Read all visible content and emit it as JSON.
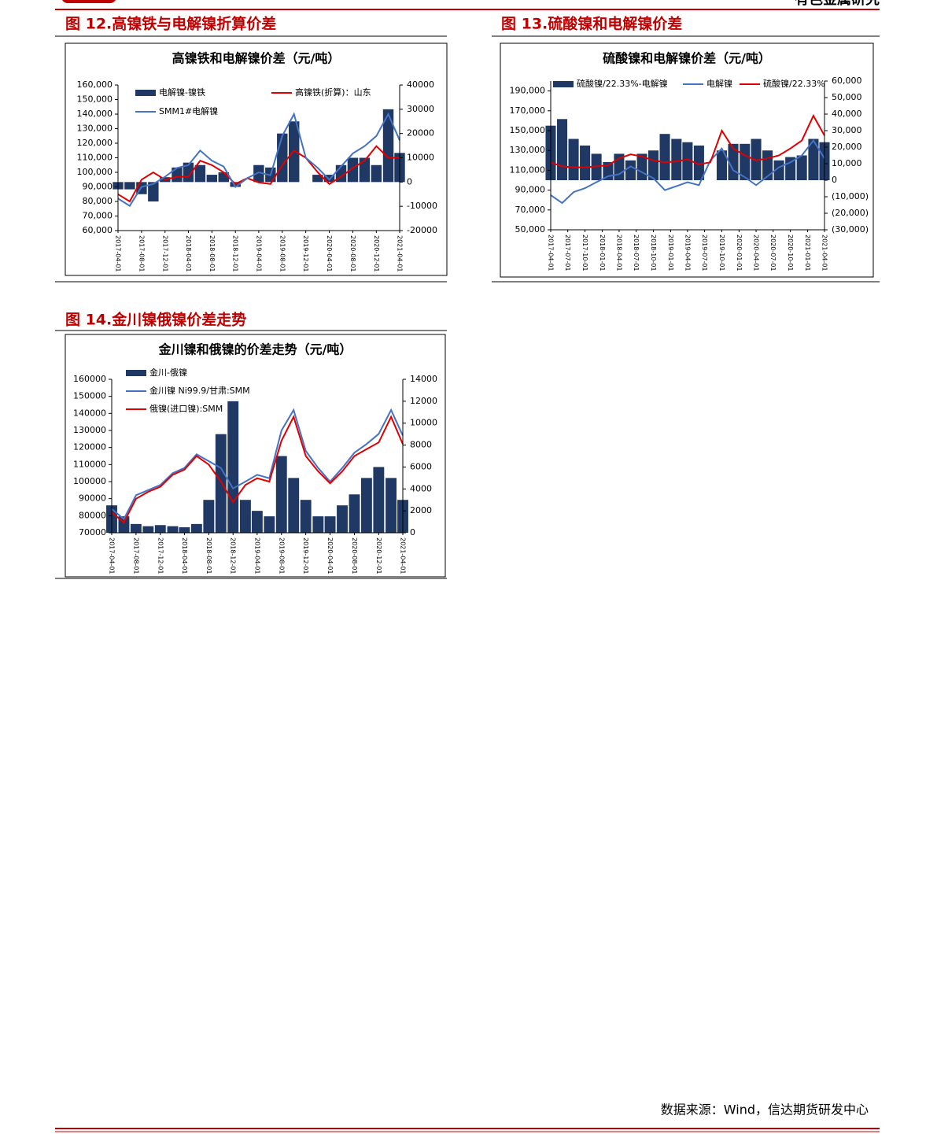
{
  "header_text": "有色金属研究",
  "source": "数据来源：Wind，信达期货研发中心",
  "chart_data": [
    {
      "type": "bar-line",
      "figure_title": "图 12.高镍铁与电解镍折算价差",
      "title": "高镍铁和电解镍价差（元/吨）",
      "x": [
        "2017-04-01",
        "2017-06-01",
        "2017-08-01",
        "2017-10-01",
        "2017-12-01",
        "2018-02-01",
        "2018-04-01",
        "2018-06-01",
        "2018-08-01",
        "2018-10-01",
        "2018-12-01",
        "2019-02-01",
        "2019-04-01",
        "2019-06-01",
        "2019-08-01",
        "2019-10-01",
        "2019-12-01",
        "2020-02-01",
        "2020-04-01",
        "2020-06-01",
        "2020-08-01",
        "2020-10-01",
        "2020-12-01",
        "2021-02-01",
        "2021-04-01"
      ],
      "xticks": [
        "2017-04-01",
        "2017-08-01",
        "2017-12-01",
        "2018-04-01",
        "2018-08-01",
        "2018-12-01",
        "2019-04-01",
        "2019-08-01",
        "2019-12-01",
        "2020-04-01",
        "2020-08-01",
        "2020-12-01",
        "2021-04-01"
      ],
      "ylim": [
        60000,
        160000
      ],
      "yticks": [
        {
          "value": 60000,
          "label": "60,000"
        },
        {
          "value": 70000,
          "label": "70,000"
        },
        {
          "value": 80000,
          "label": "80,000"
        },
        {
          "value": 90000,
          "label": "90,000"
        },
        {
          "value": 100000,
          "label": "100,000"
        },
        {
          "value": 110000,
          "label": "110,000"
        },
        {
          "value": 120000,
          "label": "120,000"
        },
        {
          "value": 130000,
          "label": "130,000"
        },
        {
          "value": 140000,
          "label": "140,000"
        },
        {
          "value": 150000,
          "label": "150,000"
        },
        {
          "value": 160000,
          "label": "160,000"
        }
      ],
      "y2lim": [
        -20000,
        40000
      ],
      "y2ticks": [
        -20000,
        -10000,
        0,
        10000,
        20000,
        30000,
        40000
      ],
      "series": [
        {
          "name": "电解镍-镍铁",
          "type": "bar",
          "axis": "y2",
          "color": "#1f3864",
          "values": [
            -3000,
            -3000,
            -5000,
            -8000,
            2000,
            6000,
            8000,
            7000,
            3000,
            4000,
            -2000,
            0,
            7000,
            6000,
            20000,
            25000,
            0,
            3000,
            3000,
            7000,
            10000,
            10000,
            7000,
            30000,
            12000
          ]
        },
        {
          "name": "高镍铁(折算)：山东",
          "type": "line",
          "color": "#e00000",
          "values": [
            85000,
            80000,
            95000,
            100000,
            95000,
            97000,
            97000,
            108000,
            105000,
            100000,
            92000,
            96000,
            93000,
            92000,
            105000,
            115000,
            110000,
            100000,
            92000,
            97000,
            103000,
            108000,
            118000,
            110000,
            110000
          ]
        },
        {
          "name": "SMM1#电解镍",
          "type": "line",
          "color": "#4472c4",
          "values": [
            82000,
            77000,
            90000,
            92000,
            97000,
            103000,
            105000,
            115000,
            108000,
            104000,
            90000,
            96000,
            100000,
            98000,
            125000,
            140000,
            110000,
            103000,
            95000,
            104000,
            113000,
            118000,
            125000,
            140000,
            122000
          ]
        }
      ]
    },
    {
      "type": "bar-line",
      "figure_title": "图 13.硫酸镍和电解镍价差",
      "title": "硫酸镍和电解镍价差（元/吨）",
      "x": [
        "2017-04-01",
        "2017-06-01",
        "2017-08-01",
        "2017-10-01",
        "2017-12-01",
        "2018-02-01",
        "2018-04-01",
        "2018-06-01",
        "2018-08-01",
        "2018-10-01",
        "2018-12-01",
        "2019-02-01",
        "2019-04-01",
        "2019-06-01",
        "2019-08-01",
        "2019-10-01",
        "2019-12-01",
        "2020-02-01",
        "2020-04-01",
        "2020-06-01",
        "2020-08-01",
        "2020-10-01",
        "2020-12-01",
        "2021-02-01",
        "2021-04-01"
      ],
      "xticks": [
        "2017-04-01",
        "2017-07-01",
        "2017-10-01",
        "2018-01-01",
        "2018-04-01",
        "2018-07-01",
        "2018-10-01",
        "2019-01-01",
        "2019-04-01",
        "2019-07-01",
        "2019-10-01",
        "2020-01-01",
        "2020-04-01",
        "2020-07-01",
        "2020-10-01",
        "2021-01-01",
        "2021-04-01"
      ],
      "ylim": [
        50000,
        200000
      ],
      "yticks": [
        {
          "value": 50000,
          "label": "50,000"
        },
        {
          "value": 70000,
          "label": "70,000"
        },
        {
          "value": 90000,
          "label": "90,000"
        },
        {
          "value": 110000,
          "label": "110,000"
        },
        {
          "value": 130000,
          "label": "130,000"
        },
        {
          "value": 150000,
          "label": "150,000"
        },
        {
          "value": 170000,
          "label": "170,000"
        },
        {
          "value": 190000,
          "label": "190,000"
        }
      ],
      "y2lim": [
        -30000,
        60000
      ],
      "y2ticks": [
        {
          "value": -30000,
          "label": "(30,000)"
        },
        {
          "value": -20000,
          "label": "(20,000)"
        },
        {
          "value": -10000,
          "label": "(10,000)"
        },
        0,
        {
          "value": 10000,
          "label": "10,000"
        },
        {
          "value": 20000,
          "label": "20,000"
        },
        {
          "value": 30000,
          "label": "30,000"
        },
        {
          "value": 40000,
          "label": "40,000"
        },
        {
          "value": 50000,
          "label": "50,000"
        },
        {
          "value": 60000,
          "label": "60,000"
        }
      ],
      "series": [
        {
          "name": "硫酸镍/22.33%-电解镍",
          "type": "bar",
          "axis": "y2",
          "color": "#1f3864",
          "values": [
            33000,
            37000,
            25000,
            21000,
            16000,
            11000,
            16000,
            12000,
            16000,
            18000,
            28000,
            25000,
            23000,
            21000,
            0,
            18000,
            22000,
            22000,
            25000,
            18000,
            12000,
            14000,
            15000,
            25000,
            23000
          ]
        },
        {
          "name": "电解镍",
          "type": "line",
          "color": "#4472c4",
          "values": [
            85000,
            77000,
            88000,
            92000,
            98000,
            104000,
            106000,
            114000,
            108000,
            102000,
            90000,
            94000,
            98000,
            95000,
            120000,
            132000,
            110000,
            103000,
            95000,
            104000,
            113000,
            118000,
            125000,
            140000,
            122000
          ]
        },
        {
          "name": "硫酸镍/22.33%",
          "type": "line",
          "color": "#e00000",
          "values": [
            118000,
            114000,
            113000,
            113000,
            114000,
            115000,
            122000,
            126000,
            124000,
            120000,
            118000,
            119000,
            121000,
            116000,
            118000,
            150000,
            132000,
            125000,
            120000,
            122000,
            125000,
            132000,
            140000,
            165000,
            145000
          ]
        }
      ]
    },
    {
      "type": "bar-line",
      "figure_title": "图 14.金川镍俄镍价差走势",
      "title": "金川镍和俄镍的价差走势（元/吨）",
      "x": [
        "2017-04-01",
        "2017-06-01",
        "2017-08-01",
        "2017-10-01",
        "2017-12-01",
        "2018-02-01",
        "2018-04-01",
        "2018-06-01",
        "2018-08-01",
        "2018-10-01",
        "2018-12-01",
        "2019-02-01",
        "2019-04-01",
        "2019-06-01",
        "2019-08-01",
        "2019-10-01",
        "2019-12-01",
        "2020-02-01",
        "2020-04-01",
        "2020-06-01",
        "2020-08-01",
        "2020-10-01",
        "2020-12-01",
        "2021-02-01",
        "2021-04-01"
      ],
      "xticks": [
        "2017-04-01",
        "2017-08-01",
        "2017-12-01",
        "2018-04-01",
        "2018-08-01",
        "2018-12-01",
        "2019-04-01",
        "2019-08-01",
        "2019-12-01",
        "2020-04-01",
        "2020-08-01",
        "2020-12-01",
        "2021-04-01"
      ],
      "ylim": [
        70000,
        160000
      ],
      "yticks": [
        70000,
        80000,
        90000,
        100000,
        110000,
        120000,
        130000,
        140000,
        150000,
        160000
      ],
      "y2lim": [
        0,
        14000
      ],
      "y2ticks": [
        0,
        2000,
        4000,
        6000,
        8000,
        10000,
        12000,
        14000
      ],
      "series": [
        {
          "name": "金川-俄镍",
          "type": "bar",
          "axis": "y2",
          "color": "#1f3864",
          "values": [
            2500,
            1500,
            800,
            600,
            700,
            600,
            500,
            800,
            3000,
            9000,
            12000,
            3000,
            2000,
            1500,
            7000,
            5000,
            3000,
            1500,
            1500,
            2500,
            3500,
            5000,
            6000,
            5000,
            3000
          ]
        },
        {
          "name": "金川镍 Ni99.9/甘肃:SMM",
          "type": "line",
          "color": "#4472c4",
          "values": [
            84000,
            78000,
            92000,
            95000,
            98000,
            105000,
            108000,
            116000,
            112000,
            108000,
            96000,
            100000,
            104000,
            102000,
            130000,
            142000,
            118000,
            108000,
            100000,
            108000,
            117000,
            122000,
            128000,
            142000,
            127000
          ]
        },
        {
          "name": "俄镍(进口镍):SMM",
          "type": "line",
          "color": "#e00000",
          "values": [
            82000,
            76000,
            90000,
            94000,
            97000,
            104000,
            107000,
            115000,
            110000,
            100000,
            88000,
            98000,
            102000,
            100000,
            124000,
            138000,
            115000,
            106000,
            99000,
            106000,
            115000,
            119000,
            123000,
            138000,
            122000
          ]
        }
      ]
    }
  ]
}
